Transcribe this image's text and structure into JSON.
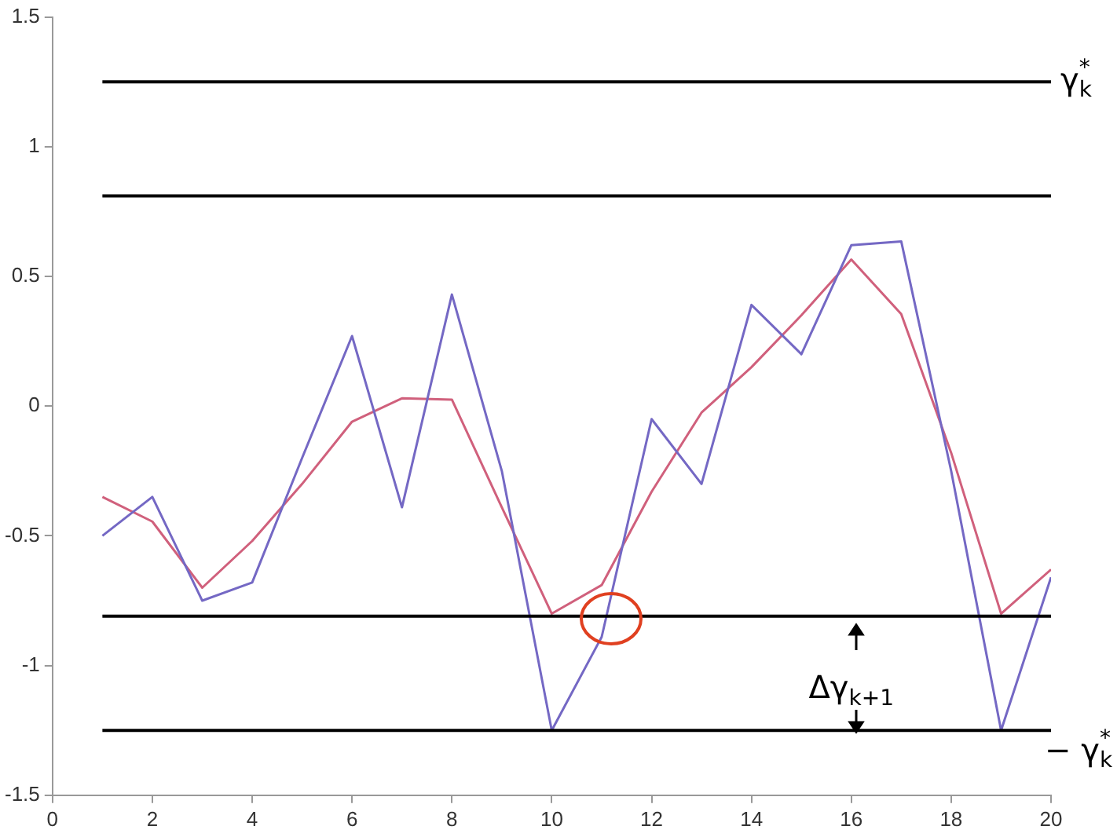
{
  "chart_data": {
    "type": "line",
    "xlim": [
      0,
      20
    ],
    "xticks": [
      0,
      2,
      4,
      6,
      8,
      10,
      12,
      14,
      16,
      18,
      20
    ],
    "ylim": [
      -1.5,
      1.5
    ],
    "yticks": [
      -1.5,
      -1,
      -0.5,
      0,
      0.5,
      1,
      1.5
    ],
    "grid": false,
    "legend": false,
    "marker": "none",
    "x": [
      1,
      2,
      3,
      4,
      5,
      6,
      7,
      8,
      9,
      10,
      11,
      12,
      13,
      14,
      15,
      16,
      17,
      18,
      19,
      20
    ],
    "series": [
      {
        "color": "#7468c4",
        "values": [
          -0.5,
          -0.35,
          -0.75,
          -0.68,
          -0.2,
          0.27,
          -0.39,
          0.43,
          -0.25,
          -1.25,
          -0.89,
          -0.05,
          -0.3,
          0.39,
          0.2,
          0.62,
          0.635,
          -0.25,
          -1.25,
          -0.66
        ]
      },
      {
        "color": "#d0607c",
        "values": [
          -0.35,
          -0.445,
          -0.7,
          -0.52,
          -0.3,
          -0.06,
          0.03,
          0.025,
          -0.39,
          -0.8,
          -0.69,
          -0.33,
          -0.025,
          0.15,
          0.35,
          0.565,
          0.355,
          -0.18,
          -0.8,
          -0.63
        ]
      }
    ],
    "ref_lines": [
      {
        "axis": "y",
        "value": 1.25,
        "label": "γ$_{k}$$^{*}$",
        "color": "#000000"
      },
      {
        "axis": "y",
        "value": 0.81,
        "label": null,
        "color": "#000000"
      },
      {
        "axis": "y",
        "value": -0.81,
        "label": null,
        "color": "#000000"
      },
      {
        "axis": "y",
        "value": -1.25,
        "label": "− γ$_{k}$$^{*}$",
        "color": "#000000"
      }
    ],
    "annotations": [
      "Δγ$_{k+1}$"
    ]
  }
}
